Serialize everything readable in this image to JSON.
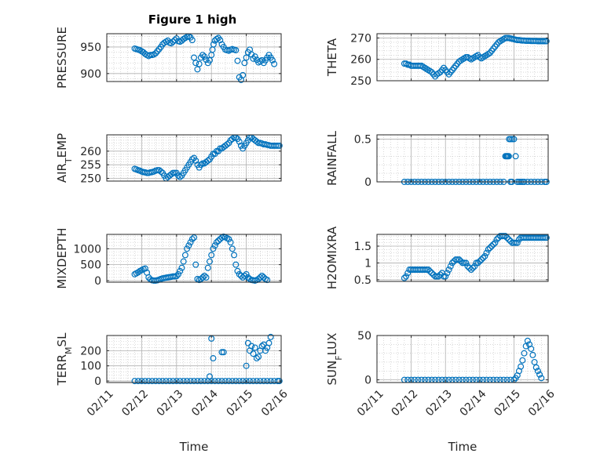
{
  "figure_title": "Figure 1 high",
  "colors": {
    "marker": "#0072BD",
    "axes": "#262626",
    "grid": "#c0c0c0"
  },
  "chart_data": [
    {
      "type": "scatter",
      "ylabel": "PRESSURE",
      "xlabel": "",
      "xlim": [
        0,
        5
      ],
      "ylim": [
        885,
        975
      ],
      "yticks": [
        900,
        950
      ],
      "ytick_labels": [
        "900",
        "950"
      ],
      "xticks": [
        0,
        1,
        2,
        3,
        4,
        5
      ],
      "xtick_labels": [],
      "grid": true,
      "title": "Figure 1 high",
      "x": [
        0.8,
        0.85,
        0.9,
        0.95,
        1.0,
        1.05,
        1.1,
        1.15,
        1.2,
        1.25,
        1.3,
        1.35,
        1.4,
        1.45,
        1.5,
        1.55,
        1.6,
        1.65,
        1.7,
        1.75,
        1.8,
        1.85,
        1.9,
        1.95,
        2.0,
        2.05,
        2.1,
        2.15,
        2.2,
        2.25,
        2.3,
        2.35,
        2.4,
        2.45,
        2.5,
        2.55,
        2.6,
        2.65,
        2.7,
        2.75,
        2.8,
        2.85,
        2.9,
        2.95,
        3.0,
        3.03,
        3.06,
        3.1,
        3.15,
        3.2,
        3.25,
        3.3,
        3.35,
        3.4,
        3.45,
        3.5,
        3.55,
        3.6,
        3.65,
        3.7,
        3.75,
        3.8,
        3.85,
        3.9,
        3.95,
        4.0,
        4.05,
        4.1,
        4.15,
        4.2,
        4.25,
        4.3,
        4.35,
        4.4,
        4.45,
        4.5,
        4.55,
        4.6,
        4.65,
        4.7,
        4.75,
        4.8
      ],
      "y": [
        947,
        946,
        945,
        944,
        942,
        940,
        937,
        935,
        933,
        935,
        935,
        936,
        938,
        942,
        946,
        950,
        955,
        958,
        960,
        962,
        958,
        957,
        960,
        963,
        966,
        961,
        960,
        962,
        965,
        967,
        969,
        970,
        968,
        963,
        930,
        920,
        908,
        918,
        930,
        935,
        932,
        926,
        920,
        925,
        935,
        945,
        955,
        962,
        965,
        967,
        963,
        955,
        950,
        945,
        944,
        943,
        945,
        946,
        945,
        944,
        924,
        893,
        888,
        897,
        920,
        930,
        940,
        945,
        936,
        928,
        932,
        926,
        921,
        923,
        925,
        920,
        925,
        930,
        935,
        930,
        925,
        918
      ]
    },
    {
      "type": "scatter",
      "ylabel": "THETA",
      "xlabel": "",
      "xlim": [
        0,
        5
      ],
      "ylim": [
        250,
        272
      ],
      "yticks": [
        250,
        260,
        270
      ],
      "ytick_labels": [
        "250",
        "260",
        "270"
      ],
      "xticks": [
        0,
        1,
        2,
        3,
        4,
        5
      ],
      "xtick_labels": [],
      "grid": true,
      "title": "",
      "x": [
        0.8,
        0.85,
        0.9,
        0.95,
        1.0,
        1.05,
        1.1,
        1.15,
        1.2,
        1.25,
        1.3,
        1.35,
        1.4,
        1.45,
        1.5,
        1.55,
        1.6,
        1.65,
        1.7,
        1.75,
        1.8,
        1.85,
        1.9,
        1.95,
        2.0,
        2.05,
        2.1,
        2.15,
        2.2,
        2.25,
        2.3,
        2.35,
        2.4,
        2.45,
        2.5,
        2.55,
        2.6,
        2.65,
        2.7,
        2.75,
        2.8,
        2.85,
        2.9,
        2.95,
        3.0,
        3.05,
        3.1,
        3.15,
        3.2,
        3.25,
        3.3,
        3.35,
        3.4,
        3.45,
        3.5,
        3.55,
        3.6,
        3.65,
        3.7,
        3.75,
        3.8,
        3.85,
        3.9,
        3.95,
        4.0,
        4.05,
        4.1,
        4.15,
        4.2,
        4.25,
        4.3,
        4.35,
        4.4,
        4.45,
        4.5,
        4.55,
        4.6,
        4.65,
        4.7,
        4.75,
        4.8,
        4.85,
        4.9,
        4.95
      ],
      "y": [
        258,
        258,
        257.5,
        257.5,
        257,
        257,
        257,
        257,
        257,
        257,
        257,
        256.5,
        256,
        255.5,
        255,
        254.5,
        254,
        253,
        252,
        253,
        253.5,
        254,
        255,
        256,
        255,
        254,
        253,
        254,
        255,
        256,
        257,
        258,
        259,
        259.5,
        260,
        260.5,
        261,
        261,
        260.5,
        260,
        260.5,
        261,
        261.5,
        262,
        261,
        260.5,
        261,
        261.5,
        262,
        262.5,
        263,
        264,
        265,
        266,
        267,
        268,
        268.5,
        269,
        269.5,
        270,
        270,
        270,
        269.8,
        269.6,
        269.4,
        269.2,
        269.0,
        269.0,
        268.9,
        268.8,
        268.8,
        268.7,
        268.7,
        268.7,
        268.6,
        268.6,
        268.6,
        268.6,
        268.5,
        268.5,
        268.5,
        268.5,
        268.5,
        268.5
      ]
    },
    {
      "type": "scatter",
      "ylabel": "AIR",
      "ylabel_subscript": "T",
      "ylabel_after": "EMP",
      "xlabel": "",
      "xlim": [
        0,
        5
      ],
      "ylim": [
        249,
        266
      ],
      "yticks": [
        250,
        255,
        260
      ],
      "ytick_labels": [
        "250",
        "255",
        "260"
      ],
      "xticks": [
        0,
        1,
        2,
        3,
        4,
        5
      ],
      "xtick_labels": [],
      "grid": true,
      "title": "",
      "x": [
        0.8,
        0.85,
        0.9,
        0.95,
        1.0,
        1.05,
        1.1,
        1.15,
        1.2,
        1.25,
        1.3,
        1.35,
        1.4,
        1.45,
        1.5,
        1.55,
        1.6,
        1.65,
        1.7,
        1.75,
        1.8,
        1.85,
        1.9,
        1.95,
        2.0,
        2.05,
        2.1,
        2.15,
        2.2,
        2.25,
        2.3,
        2.35,
        2.4,
        2.45,
        2.5,
        2.55,
        2.6,
        2.65,
        2.7,
        2.75,
        2.8,
        2.85,
        2.9,
        2.95,
        3.0,
        3.05,
        3.1,
        3.15,
        3.2,
        3.25,
        3.3,
        3.35,
        3.4,
        3.45,
        3.5,
        3.55,
        3.6,
        3.65,
        3.7,
        3.75,
        3.8,
        3.85,
        3.9,
        3.95,
        4.0,
        4.05,
        4.1,
        4.15,
        4.2,
        4.25,
        4.3,
        4.35,
        4.4,
        4.45,
        4.5,
        4.55,
        4.6,
        4.65,
        4.7,
        4.75,
        4.8,
        4.85,
        4.9,
        4.95
      ],
      "y": [
        253.5,
        253.3,
        253,
        252.8,
        252.5,
        252.3,
        252.2,
        252,
        252,
        252.2,
        252.3,
        252.5,
        252.8,
        253,
        253,
        252.5,
        252,
        251,
        250,
        250.5,
        251,
        251.5,
        252,
        252,
        252,
        251,
        250.5,
        251,
        252,
        253,
        254,
        255,
        256,
        257,
        257.5,
        256.5,
        255,
        254,
        255,
        255.5,
        255.5,
        256,
        256.5,
        257,
        258,
        259,
        259,
        260,
        260,
        261,
        261,
        261.5,
        262,
        262.5,
        263,
        264,
        264.5,
        265,
        265,
        264.5,
        263.5,
        262,
        261,
        262,
        263,
        264,
        265,
        265,
        264.5,
        264,
        263.5,
        263,
        263,
        262.8,
        262.5,
        262.5,
        262.3,
        262.2,
        262,
        262,
        262,
        262,
        262,
        262
      ]
    },
    {
      "type": "scatter",
      "ylabel": "RAINFALL",
      "xlabel": "",
      "xlim": [
        0,
        5
      ],
      "ylim": [
        0,
        0.55
      ],
      "yticks": [
        0,
        0.5
      ],
      "ytick_labels": [
        "0",
        "0.5"
      ],
      "xticks": [
        0,
        1,
        2,
        3,
        4,
        5
      ],
      "xtick_labels": [],
      "grid": true,
      "title": "",
      "x": [
        0.8,
        0.9,
        1.0,
        1.1,
        1.2,
        1.3,
        1.4,
        1.5,
        1.6,
        1.7,
        1.8,
        1.9,
        2.0,
        2.1,
        2.2,
        2.3,
        2.4,
        2.5,
        2.6,
        2.7,
        2.8,
        2.9,
        3.0,
        3.1,
        3.2,
        3.3,
        3.4,
        3.5,
        3.6,
        3.7,
        3.75,
        3.8,
        3.85,
        3.9,
        3.95,
        4.0,
        4.05,
        4.1,
        4.15,
        4.2,
        4.25,
        4.3,
        4.4,
        4.5,
        4.6,
        4.7,
        4.8,
        4.9,
        4.95,
        3.78,
        3.82,
        3.86,
        3.9,
        3.94
      ],
      "y": [
        0,
        0,
        0,
        0,
        0,
        0,
        0,
        0,
        0,
        0,
        0,
        0,
        0,
        0,
        0,
        0,
        0,
        0,
        0,
        0,
        0,
        0,
        0,
        0,
        0,
        0,
        0,
        0,
        0,
        0,
        0.3,
        0.3,
        0.3,
        0.5,
        0.5,
        0.5,
        0.3,
        0,
        0,
        0,
        0,
        0,
        0,
        0,
        0,
        0,
        0,
        0,
        0,
        0.3,
        0.3,
        0.5,
        0,
        0
      ]
    },
    {
      "type": "scatter",
      "ylabel": "MIXDEPTH",
      "xlabel": "",
      "xlim": [
        0,
        5
      ],
      "ylim": [
        -50,
        1450
      ],
      "yticks": [
        0,
        500,
        1000
      ],
      "ytick_labels": [
        "0",
        "500",
        "1000"
      ],
      "xticks": [
        0,
        1,
        2,
        3,
        4,
        5
      ],
      "xtick_labels": [],
      "grid": true,
      "title": "",
      "x": [
        0.8,
        0.85,
        0.9,
        0.95,
        1.0,
        1.05,
        1.1,
        1.15,
        1.2,
        1.25,
        1.3,
        1.35,
        1.4,
        1.45,
        1.5,
        1.55,
        1.6,
        1.65,
        1.7,
        1.75,
        1.8,
        1.85,
        1.9,
        1.95,
        2.0,
        2.05,
        2.1,
        2.15,
        2.2,
        2.25,
        2.3,
        2.35,
        2.4,
        2.45,
        2.5,
        2.55,
        2.6,
        2.65,
        2.7,
        2.75,
        2.8,
        2.85,
        2.9,
        2.95,
        3.0,
        3.05,
        3.1,
        3.15,
        3.2,
        3.25,
        3.3,
        3.35,
        3.4,
        3.45,
        3.5,
        3.55,
        3.6,
        3.65,
        3.7,
        3.75,
        3.8,
        3.85,
        3.9,
        3.95,
        4.0,
        4.05,
        4.1,
        4.15,
        4.2,
        4.25,
        4.3,
        4.35,
        4.4,
        4.45,
        4.5,
        4.55,
        4.6
      ],
      "y": [
        200,
        230,
        260,
        300,
        330,
        360,
        380,
        250,
        100,
        40,
        10,
        0,
        0,
        10,
        30,
        50,
        70,
        80,
        90,
        100,
        110,
        120,
        130,
        130,
        140,
        200,
        300,
        400,
        600,
        800,
        1000,
        1100,
        1200,
        1300,
        1350,
        500,
        50,
        20,
        50,
        100,
        150,
        100,
        400,
        600,
        800,
        1000,
        1100,
        1200,
        1250,
        1300,
        1350,
        1380,
        1360,
        1330,
        1300,
        1200,
        1000,
        800,
        500,
        300,
        200,
        150,
        100,
        150,
        200,
        100,
        50,
        20,
        10,
        0,
        20,
        50,
        100,
        150,
        100,
        50,
        20
      ]
    },
    {
      "type": "scatter",
      "ylabel": "H2OMIXRA",
      "xlabel": "",
      "xlim": [
        0,
        5
      ],
      "ylim": [
        0.45,
        1.85
      ],
      "yticks": [
        0.5,
        1,
        1.5
      ],
      "ytick_labels": [
        "0.5",
        "1",
        "1.5"
      ],
      "xticks": [
        0,
        1,
        2,
        3,
        4,
        5
      ],
      "xtick_labels": [],
      "grid": true,
      "title": "",
      "x": [
        0.8,
        0.85,
        0.9,
        0.95,
        1.0,
        1.05,
        1.1,
        1.15,
        1.2,
        1.25,
        1.3,
        1.35,
        1.4,
        1.45,
        1.5,
        1.55,
        1.6,
        1.65,
        1.7,
        1.75,
        1.8,
        1.85,
        1.9,
        1.95,
        2.0,
        2.05,
        2.1,
        2.15,
        2.2,
        2.25,
        2.3,
        2.35,
        2.4,
        2.45,
        2.5,
        2.55,
        2.6,
        2.65,
        2.7,
        2.75,
        2.8,
        2.85,
        2.9,
        2.95,
        3.0,
        3.05,
        3.1,
        3.15,
        3.2,
        3.25,
        3.3,
        3.35,
        3.4,
        3.45,
        3.5,
        3.55,
        3.6,
        3.65,
        3.7,
        3.75,
        3.8,
        3.85,
        3.9,
        3.95,
        4.0,
        4.05,
        4.1,
        4.15,
        4.2,
        4.25,
        4.3,
        4.35,
        4.4,
        4.45,
        4.5,
        4.55,
        4.6,
        4.65,
        4.7,
        4.75,
        4.8,
        4.85,
        4.9,
        4.95
      ],
      "y": [
        0.55,
        0.6,
        0.7,
        0.8,
        0.8,
        0.8,
        0.8,
        0.8,
        0.8,
        0.8,
        0.8,
        0.8,
        0.8,
        0.8,
        0.8,
        0.75,
        0.7,
        0.65,
        0.6,
        0.6,
        0.6,
        0.65,
        0.7,
        0.6,
        0.6,
        0.7,
        0.8,
        0.9,
        1.0,
        1.05,
        1.1,
        1.1,
        1.1,
        1.05,
        1.0,
        1.0,
        1.0,
        0.9,
        0.85,
        0.8,
        0.85,
        0.9,
        1.0,
        1.0,
        1.05,
        1.1,
        1.15,
        1.2,
        1.3,
        1.4,
        1.45,
        1.5,
        1.55,
        1.6,
        1.7,
        1.75,
        1.8,
        1.8,
        1.8,
        1.8,
        1.75,
        1.7,
        1.65,
        1.6,
        1.6,
        1.6,
        1.6,
        1.7,
        1.75,
        1.75,
        1.75,
        1.75,
        1.75,
        1.75,
        1.75,
        1.75,
        1.75,
        1.75,
        1.75,
        1.75,
        1.75,
        1.75,
        1.75,
        1.75
      ]
    },
    {
      "type": "scatter",
      "ylabel": "TERR",
      "ylabel_subscript": "M",
      "ylabel_after": "SL",
      "xlabel": "Time",
      "xlim": [
        0,
        5
      ],
      "ylim": [
        -10,
        300
      ],
      "yticks": [
        0,
        100,
        200
      ],
      "ytick_labels": [
        "0",
        "100",
        "200"
      ],
      "xticks": [
        0,
        1,
        2,
        3,
        4,
        5
      ],
      "xtick_labels": [
        "02/11",
        "02/12",
        "02/13",
        "02/14",
        "02/15",
        "02/16"
      ],
      "grid": true,
      "title": "",
      "x": [
        0.8,
        0.9,
        1.0,
        1.1,
        1.2,
        1.3,
        1.4,
        1.5,
        1.6,
        1.7,
        1.8,
        1.9,
        2.0,
        2.1,
        2.2,
        2.3,
        2.4,
        2.5,
        2.6,
        2.7,
        2.8,
        2.9,
        3.0,
        3.1,
        3.2,
        3.3,
        3.4,
        3.5,
        3.6,
        3.7,
        3.8,
        3.9,
        4.0,
        4.1,
        4.2,
        4.3,
        4.4,
        4.5,
        4.6,
        4.7,
        4.8,
        4.9,
        4.95,
        2.95,
        3.0,
        3.05,
        3.3,
        3.35,
        4.0,
        4.05,
        4.1,
        4.15,
        4.2,
        4.25,
        4.3,
        4.35,
        4.4,
        4.45,
        4.5,
        4.55,
        4.6,
        4.65,
        4.7
      ],
      "y": [
        0,
        0,
        0,
        0,
        0,
        0,
        0,
        0,
        0,
        0,
        0,
        0,
        0,
        0,
        0,
        0,
        0,
        0,
        0,
        0,
        0,
        0,
        0,
        0,
        0,
        0,
        0,
        0,
        0,
        0,
        0,
        0,
        0,
        0,
        0,
        0,
        0,
        0,
        0,
        0,
        0,
        0,
        0,
        30,
        280,
        150,
        190,
        190,
        100,
        250,
        200,
        230,
        180,
        220,
        150,
        160,
        200,
        230,
        240,
        200,
        220,
        250,
        290
      ]
    },
    {
      "type": "scatter",
      "ylabel": "SUN",
      "ylabel_subscript": "F",
      "ylabel_after": "LUX",
      "xlabel": "Time",
      "xlim": [
        0,
        5
      ],
      "ylim": [
        -3,
        50
      ],
      "yticks": [
        0,
        50
      ],
      "ytick_labels": [
        "0",
        "50"
      ],
      "xticks": [
        0,
        1,
        2,
        3,
        4,
        5
      ],
      "xtick_labels": [
        "02/11",
        "02/12",
        "02/13",
        "02/14",
        "02/15",
        "02/16"
      ],
      "grid": true,
      "title": "",
      "x": [
        0.8,
        0.9,
        1.0,
        1.1,
        1.2,
        1.3,
        1.4,
        1.5,
        1.6,
        1.7,
        1.8,
        1.9,
        2.0,
        2.1,
        2.2,
        2.3,
        2.4,
        2.5,
        2.6,
        2.7,
        2.8,
        2.9,
        3.0,
        3.1,
        3.2,
        3.3,
        3.4,
        3.5,
        3.6,
        3.7,
        3.8,
        3.9,
        4.0,
        4.05,
        4.1,
        4.15,
        4.2,
        4.25,
        4.3,
        4.35,
        4.4,
        4.45,
        4.5,
        4.55,
        4.6,
        4.65,
        4.7,
        4.75,
        4.8
      ],
      "y": [
        0,
        0,
        0,
        0,
        0,
        0,
        0,
        0,
        0,
        0,
        0,
        0,
        0,
        0,
        0,
        0,
        0,
        0,
        0,
        0,
        0,
        0,
        0,
        0,
        0,
        0,
        0,
        0,
        0,
        0,
        0,
        0,
        0,
        2,
        5,
        10,
        15,
        22,
        30,
        38,
        44,
        40,
        35,
        28,
        20,
        14,
        10,
        6,
        2
      ]
    }
  ]
}
